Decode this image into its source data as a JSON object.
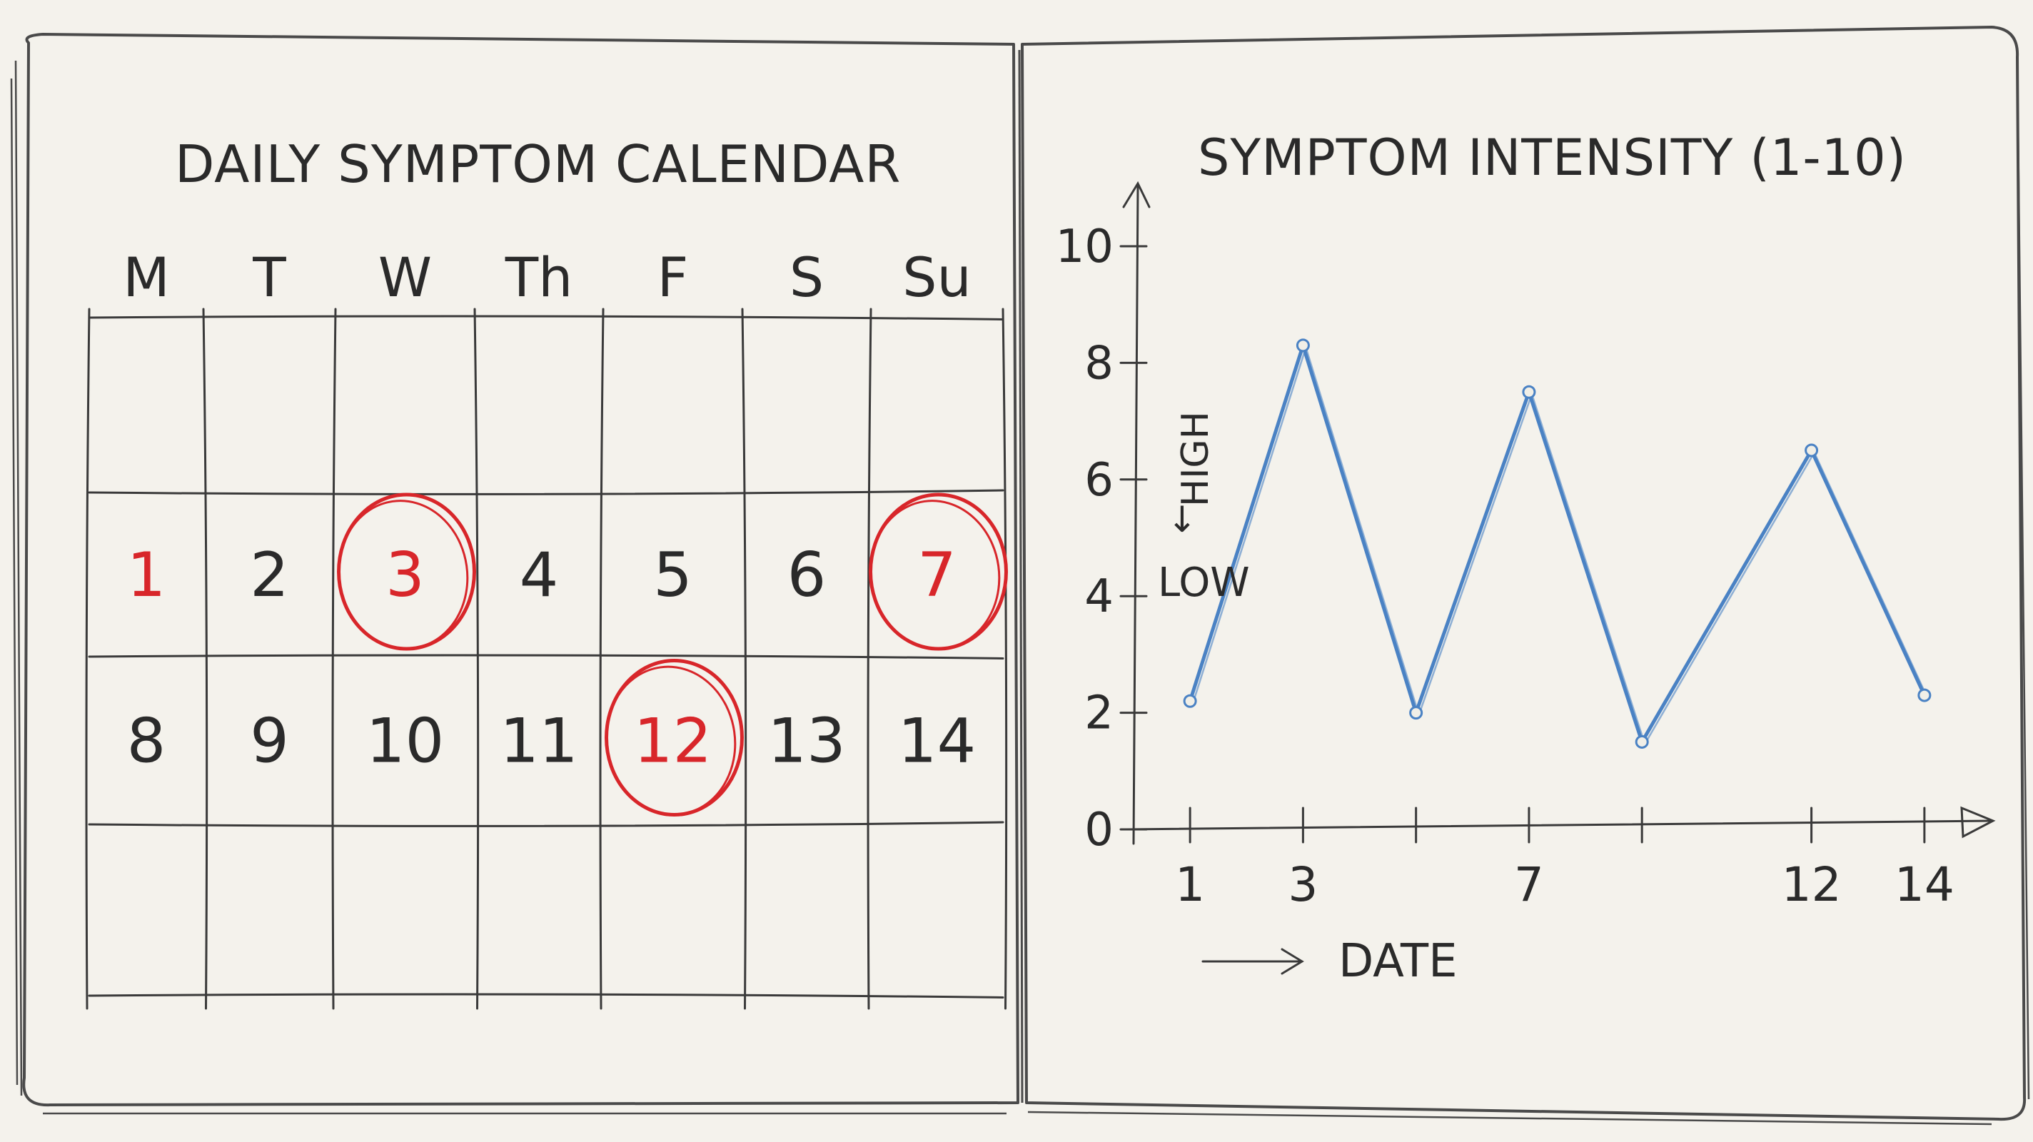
{
  "notebook": {
    "calendar": {
      "title": "DAILY SYMPTOM CALENDAR",
      "weekdays": [
        "M",
        "T",
        "W",
        "Th",
        "F",
        "S",
        "Su"
      ],
      "weeks": [
        [
          "",
          "",
          "",
          "",
          "",
          "",
          ""
        ],
        [
          "1",
          "2",
          "3",
          "4",
          "5",
          "6",
          "7"
        ],
        [
          "8",
          "9",
          "10",
          "11",
          "12",
          "13",
          "14"
        ],
        [
          "",
          "",
          "",
          "",
          "",
          "",
          ""
        ]
      ],
      "red_days": [
        "1",
        "3",
        "7",
        "12"
      ],
      "circled_days": [
        "3",
        "7",
        "12"
      ],
      "mark_color": "#d8262a",
      "ink_color": "#2a2a2a"
    }
  },
  "chart_data": {
    "type": "line",
    "title": "SYMPTOM INTENSITY (1-10)",
    "xlabel": "DATE",
    "ylabel_high": "HIGH",
    "ylabel_low": "LOW",
    "x_ticks": [
      "1",
      "3",
      "7",
      "12",
      "14"
    ],
    "y_ticks": [
      "0",
      "2",
      "4",
      "6",
      "8",
      "10"
    ],
    "xlim": [
      0,
      15
    ],
    "ylim": [
      0,
      10
    ],
    "series": [
      {
        "color": "#4a82c4",
        "points": [
          {
            "x": 1,
            "y": 2.2
          },
          {
            "x": 3,
            "y": 8.3
          },
          {
            "x": 5,
            "y": 2.0
          },
          {
            "x": 7,
            "y": 7.5
          },
          {
            "x": 9,
            "y": 1.5
          },
          {
            "x": 12,
            "y": 6.5
          },
          {
            "x": 14,
            "y": 2.3
          }
        ]
      }
    ],
    "grid": false
  }
}
